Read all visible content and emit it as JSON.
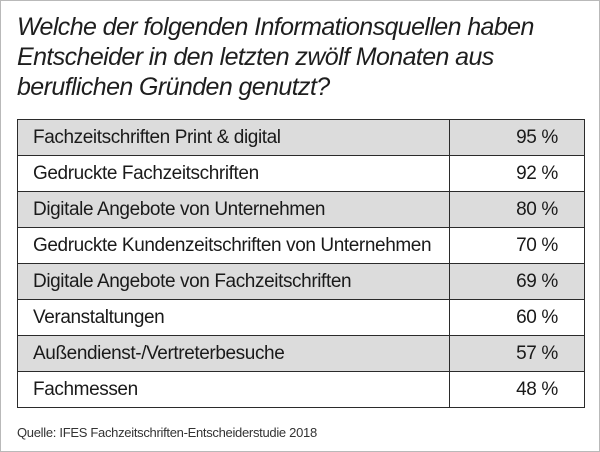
{
  "chart_data": {
    "type": "table",
    "title": "Welche der folgenden Informationsquellen haben Entscheider in den letzten zwölf Monaten aus beruflichen Gründen genutzt?",
    "rows": [
      {
        "label": "Fachzeitschriften Print & digital",
        "value": 95,
        "display": "95 %"
      },
      {
        "label": "Gedruckte Fachzeitschriften",
        "value": 92,
        "display": "92 %"
      },
      {
        "label": "Digitale Angebote von Unternehmen",
        "value": 80,
        "display": "80 %"
      },
      {
        "label": "Gedruckte Kundenzeitschriften von Unternehmen",
        "value": 70,
        "display": "70 %"
      },
      {
        "label": "Digitale Angebote von Fachzeitschriften",
        "value": 69,
        "display": "69 %"
      },
      {
        "label": "Veranstaltungen",
        "value": 60,
        "display": "60 %"
      },
      {
        "label": "Außendienst-/Vertreterbesuche",
        "value": 57,
        "display": "57 %"
      },
      {
        "label": "Fachmessen",
        "value": 48,
        "display": "48 %"
      }
    ],
    "source": "Quelle: IFES Fachzeitschriften-Entscheiderstudie 2018",
    "colors": {
      "shaded_row": "#dcdcdc",
      "plain_row": "#ffffff",
      "border": "#2b2b2b"
    }
  }
}
